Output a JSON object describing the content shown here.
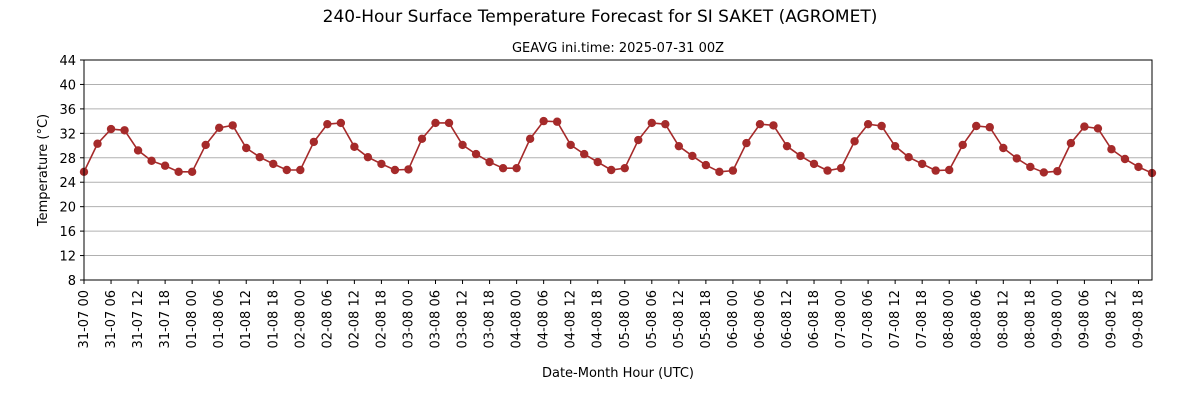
{
  "chart_data": {
    "type": "line",
    "title": "240-Hour Surface Temperature Forecast for SI SAKET (AGROMET)",
    "subtitle": "GEAVG ini.time: 2025-07-31 00Z",
    "xlabel": "Date-Month Hour (UTC)",
    "ylabel": "Temperature (°C)",
    "ylim": [
      8,
      44
    ],
    "yticks": [
      8,
      12,
      16,
      20,
      24,
      28,
      32,
      36,
      40,
      44
    ],
    "grid": "horizontal",
    "line_color": "#a52a2a",
    "x_step_hours": 3,
    "x_tick_labels": [
      "31-07 00",
      "31-07 06",
      "31-07 12",
      "31-07 18",
      "01-08 00",
      "01-08 06",
      "01-08 12",
      "01-08 18",
      "02-08 00",
      "02-08 06",
      "02-08 12",
      "02-08 18",
      "03-08 00",
      "03-08 06",
      "03-08 12",
      "03-08 18",
      "04-08 00",
      "04-08 06",
      "04-08 12",
      "04-08 18",
      "05-08 00",
      "05-08 06",
      "05-08 12",
      "05-08 18",
      "06-08 00",
      "06-08 06",
      "06-08 12",
      "06-08 18",
      "07-08 00",
      "07-08 06",
      "07-08 12",
      "07-08 18",
      "08-08 00",
      "08-08 06",
      "08-08 12",
      "08-08 18",
      "09-08 00",
      "09-08 06",
      "09-08 12",
      "09-08 18"
    ],
    "series": [
      {
        "values": [
          25.7,
          30.3,
          32.7,
          32.5,
          29.2,
          27.5,
          26.7,
          25.7,
          25.7,
          30.1,
          32.9,
          33.3,
          29.6,
          28.1,
          27.0,
          26.0,
          26.0,
          30.6,
          33.5,
          33.7,
          29.8,
          28.1,
          27.0,
          26.0,
          26.1,
          31.1,
          33.7,
          33.7,
          30.1,
          28.6,
          27.3,
          26.3,
          26.3,
          31.1,
          34.0,
          33.9,
          30.1,
          28.6,
          27.3,
          26.0,
          26.3,
          30.9,
          33.7,
          33.5,
          29.9,
          28.3,
          26.8,
          25.7,
          25.9,
          30.4,
          33.5,
          33.3,
          29.9,
          28.3,
          27.0,
          25.9,
          26.3,
          30.7,
          33.5,
          33.2,
          29.9,
          28.1,
          27.0,
          25.9,
          26.0,
          30.1,
          33.2,
          33.0,
          29.6,
          27.9,
          26.5,
          25.6,
          25.8,
          30.4,
          33.1,
          32.8,
          29.4,
          27.8,
          26.5,
          25.5
        ]
      }
    ]
  }
}
